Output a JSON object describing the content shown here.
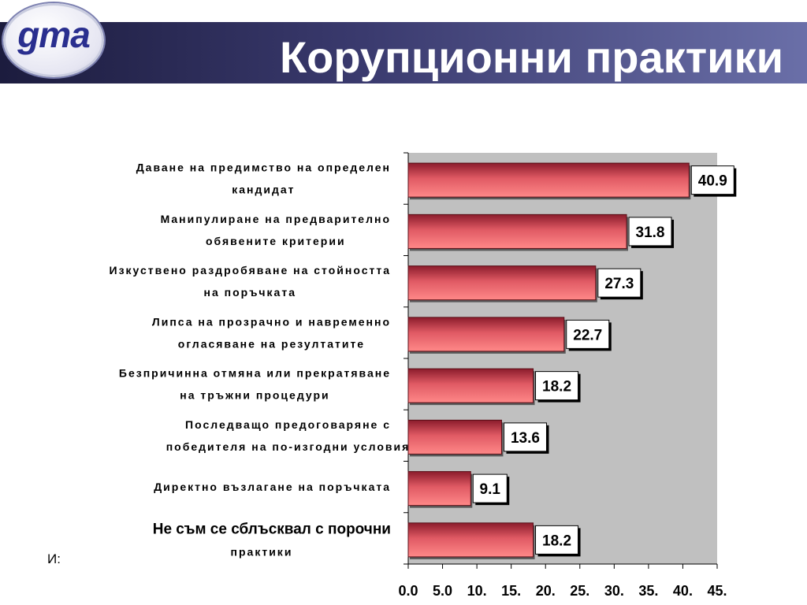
{
  "slide": {
    "logo_text": "gma",
    "title": "Корупционни практики",
    "source_fragment": "И:"
  },
  "chart_data": {
    "type": "bar",
    "orientation": "horizontal",
    "categories": [
      [
        "Даване на предимство на определен",
        "кандидат"
      ],
      [
        "Манипулиране на предварително",
        "обявените критерии"
      ],
      [
        "Изкуствено раздробяване на стойността",
        "на поръчката"
      ],
      [
        "Липса на прозрачно и навременно",
        "огласяване на резултатите"
      ],
      [
        "Безпричинна отмяна или прекратяване",
        "на тръжни процедури"
      ],
      [
        "Последващо предоговаряне с",
        "победителя на по-изгодни условия"
      ],
      [
        "Директно възлагане на поръчката"
      ],
      [
        "Не съм се сблъсквал с порочни",
        "практики"
      ]
    ],
    "values": [
      40.9,
      31.8,
      27.3,
      22.7,
      18.2,
      13.6,
      9.1,
      18.2
    ],
    "data_labels": [
      "40.9",
      "31.8",
      "27.3",
      "22.7",
      "18.2",
      "13.6",
      "9.1",
      "18.2"
    ],
    "xlim": [
      0,
      45
    ],
    "tick_labels": [
      "0.0",
      "5.0",
      "10.",
      "15.",
      "20.",
      "25.",
      "30.",
      "35.",
      "40.",
      "45."
    ],
    "colors": {
      "bar_light": "#ff8080",
      "bar_dark": "#8b1c2c",
      "plot_bg": "#c0c0c0"
    },
    "grid": false,
    "legend": "none"
  }
}
